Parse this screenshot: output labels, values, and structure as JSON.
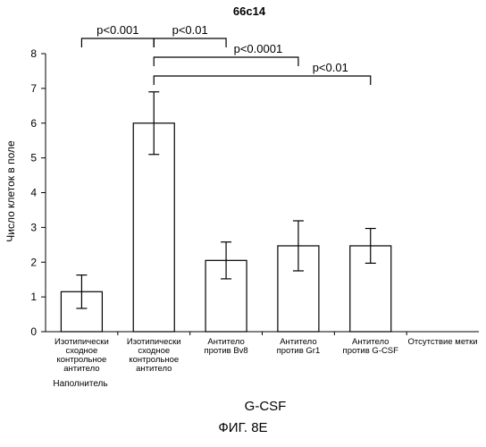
{
  "chart_data": {
    "type": "bar",
    "title": "66c14",
    "ylabel": "Число клеток в поле",
    "xlabel": "G-CSF",
    "ylim": [
      0,
      8
    ],
    "yticks": [
      0,
      1,
      2,
      3,
      4,
      5,
      6,
      7,
      8
    ],
    "categories": [
      [
        "Изотипически",
        "сходное",
        "контрольное",
        "антитело"
      ],
      [
        "Изотипически",
        "сходное",
        "контрольное",
        "антитело"
      ],
      [
        "Антитело",
        "против Bv8"
      ],
      [
        "Антитело",
        "против Gr1"
      ],
      [
        "Антитело",
        "против G-CSF"
      ],
      [
        "Отсутствие метки"
      ]
    ],
    "values": [
      1.15,
      6.0,
      2.05,
      2.47,
      2.47,
      null
    ],
    "errors": [
      0.48,
      0.9,
      0.53,
      0.72,
      0.5,
      null
    ],
    "group_label": "Наполнитель",
    "comparisons": [
      {
        "from": 0,
        "to": 1,
        "label": "p<0.001"
      },
      {
        "from": 1,
        "to": 2,
        "label": "p<0.01"
      },
      {
        "from": 1,
        "to": 3,
        "label": "p<0.0001"
      },
      {
        "from": 1,
        "to": 4,
        "label": "p<0.01"
      }
    ],
    "colors": {
      "bar_fill": "#ffffff",
      "bar_stroke": "#000000",
      "axis": "#000000"
    }
  },
  "figure_caption": "ФИГ. 8E"
}
